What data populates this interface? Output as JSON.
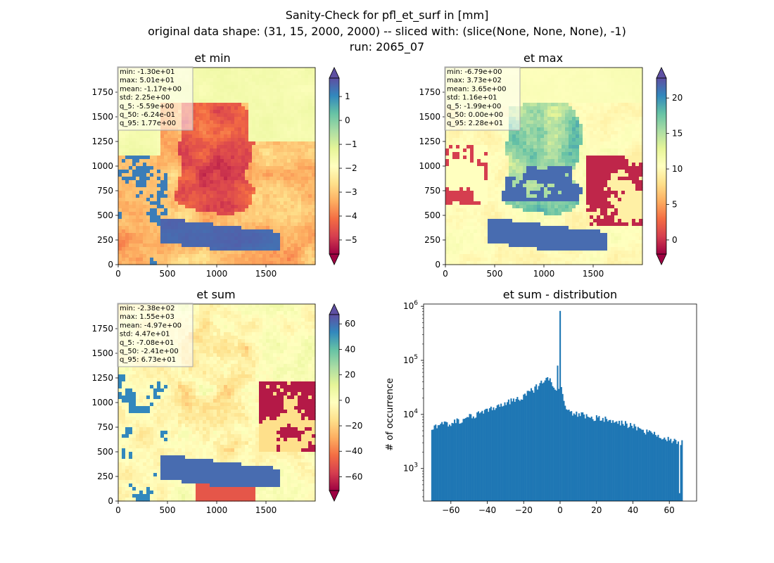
{
  "figure": {
    "title_lines": [
      "Sanity-Check for pfl_et_surf in [mm]",
      "original data shape: (31, 15, 2000, 2000) -- sliced with: (slice(None, None, None), -1)",
      "run: 2065_07"
    ]
  },
  "chart_data": [
    {
      "type": "heatmap",
      "title": "et min",
      "xlabel": "",
      "ylabel": "",
      "xlim": [
        0,
        2000
      ],
      "ylim": [
        0,
        2000
      ],
      "x_ticks": [
        "0",
        "500",
        "1000",
        "1500"
      ],
      "y_ticks": [
        "0",
        "250",
        "500",
        "750",
        "1000",
        "1250",
        "1500",
        "1750"
      ],
      "colormap": "Spectral",
      "colorbar_range": [
        -5.59,
        1.77
      ],
      "colorbar_ticks": [
        "1",
        "0",
        "−1",
        "−2",
        "−3",
        "−4",
        "−5"
      ],
      "colorbar_tick_values": [
        1,
        0,
        -1,
        -2,
        -3,
        -4,
        -5
      ],
      "stats": [
        "min: -1.30e+01",
        "max: 5.01e+01",
        "mean: -1.17e+00",
        "std: 2.25e+00",
        "q_5: -5.59e+00",
        "q_50: -6.24e-01",
        "q_95: 1.77e+00"
      ]
    },
    {
      "type": "heatmap",
      "title": "et max",
      "xlabel": "",
      "ylabel": "",
      "xlim": [
        0,
        2000
      ],
      "ylim": [
        0,
        2000
      ],
      "x_ticks": [
        "0",
        "500",
        "1000",
        "1500"
      ],
      "y_ticks": [
        "0",
        "250",
        "500",
        "750",
        "1000",
        "1250",
        "1500",
        "1750"
      ],
      "colormap": "Spectral",
      "colorbar_range": [
        -1.99,
        22.8
      ],
      "colorbar_ticks": [
        "20",
        "15",
        "10",
        "5",
        "0"
      ],
      "colorbar_tick_values": [
        20,
        15,
        10,
        5,
        0
      ],
      "stats": [
        "min: -6.79e+00",
        "max: 3.73e+02",
        "mean: 3.65e+00",
        "std: 1.16e+01",
        "q_5: -1.99e+00",
        "q_50: 0.00e+00",
        "q_95: 2.28e+01"
      ]
    },
    {
      "type": "heatmap",
      "title": "et sum",
      "xlabel": "",
      "ylabel": "",
      "xlim": [
        0,
        2000
      ],
      "ylim": [
        0,
        2000
      ],
      "x_ticks": [
        "0",
        "500",
        "1000",
        "1500"
      ],
      "y_ticks": [
        "0",
        "250",
        "500",
        "750",
        "1000",
        "1250",
        "1500",
        "1750"
      ],
      "colormap": "Spectral",
      "colorbar_range": [
        -70.8,
        67.3
      ],
      "colorbar_ticks": [
        "60",
        "40",
        "20",
        "0",
        "−20",
        "−40",
        "−60"
      ],
      "colorbar_tick_values": [
        60,
        40,
        20,
        0,
        -20,
        -40,
        -60
      ],
      "stats": [
        "min: -2.38e+02",
        "max: 1.55e+03",
        "mean: -4.97e+00",
        "std: 4.47e+01",
        "q_5: -7.08e+01",
        "q_50: -2.41e+00",
        "q_95: 6.73e+01"
      ]
    },
    {
      "type": "bar",
      "title": "et sum - distribution",
      "xlabel": "",
      "ylabel": "# of occurrence",
      "log_y": true,
      "xlim": [
        -75,
        75
      ],
      "ylim": [
        250,
        1100000
      ],
      "x_ticks": [
        "−60",
        "−40",
        "−20",
        "0",
        "20",
        "40",
        "60"
      ],
      "x_tick_values": [
        -60,
        -40,
        -20,
        0,
        20,
        40,
        60
      ],
      "y_ticks": [
        {
          "base": "10",
          "exp": "3",
          "value": 1000
        },
        {
          "base": "10",
          "exp": "4",
          "value": 10000
        },
        {
          "base": "10",
          "exp": "5",
          "value": 100000
        },
        {
          "base": "10",
          "exp": "6",
          "value": 1000000
        }
      ],
      "bar_color": "#1f77b4",
      "bin_range": [
        -70.8,
        67.3
      ],
      "bins": 200,
      "anchors": [
        [
          -70.8,
          5000
        ],
        [
          -68,
          6000
        ],
        [
          -60,
          7000
        ],
        [
          -50,
          9000
        ],
        [
          -40,
          12000
        ],
        [
          -30,
          16000
        ],
        [
          -20,
          22000
        ],
        [
          -15,
          28000
        ],
        [
          -10,
          38000
        ],
        [
          -7,
          45000
        ],
        [
          -4,
          38000
        ],
        [
          -2,
          26000
        ],
        [
          -1,
          30000
        ],
        [
          1,
          28000
        ],
        [
          3,
          12000
        ],
        [
          10,
          10000
        ],
        [
          20,
          8500
        ],
        [
          30,
          7500
        ],
        [
          40,
          6000
        ],
        [
          50,
          4500
        ],
        [
          60,
          3500
        ],
        [
          67.3,
          3000
        ]
      ],
      "spikes": [
        {
          "x": 0,
          "value": 820000
        },
        {
          "x": -1.1,
          "value": 80000
        },
        {
          "x": 65.5,
          "value": 350
        }
      ]
    }
  ]
}
